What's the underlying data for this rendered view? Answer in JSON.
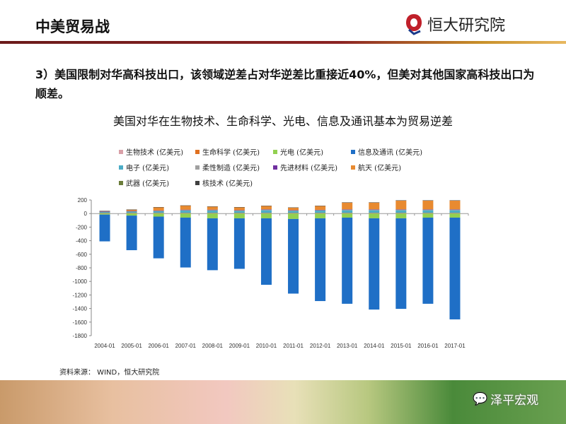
{
  "header": {
    "title": "中美贸易战",
    "logo_text": "恒大研究院"
  },
  "body_text": "3）美国限制对华高科技出口，该领域逆差占对华逆差比重接近40%，但美对其他国家高科技出口为顺差。",
  "source": "资料来源： WIND，恒大研究院",
  "watermark": "泽平宏观",
  "chart_data": {
    "type": "bar",
    "stacked": true,
    "title": "美国对华在生物技术、生命科学、光电、信息及通讯基本为贸易逆差",
    "categories": [
      "2004-01",
      "2005-01",
      "2006-01",
      "2007-01",
      "2008-01",
      "2009-01",
      "2010-01",
      "2011-01",
      "2012-01",
      "2013-01",
      "2014-01",
      "2015-01",
      "2016-01",
      "2017-01"
    ],
    "ylim": [
      -1800,
      200
    ],
    "yticks": [
      200,
      0,
      -200,
      -400,
      -600,
      -800,
      -1000,
      -1200,
      -1400,
      -1600,
      -1800
    ],
    "legend_position": "top",
    "series": [
      {
        "name": "生物技术 (亿美元)",
        "color": "#d9a0a8",
        "values": [
          3,
          3,
          3,
          3,
          3,
          3,
          3,
          3,
          3,
          3,
          3,
          3,
          3,
          3
        ]
      },
      {
        "name": "生命科学 (亿美元)",
        "color": "#e07020",
        "values": [
          5,
          5,
          5,
          5,
          5,
          5,
          5,
          5,
          5,
          5,
          5,
          5,
          5,
          5
        ]
      },
      {
        "name": "光电 (亿美元)",
        "color": "#92d050",
        "values": [
          -15,
          -30,
          -45,
          -60,
          -70,
          -70,
          -70,
          -80,
          -70,
          -60,
          -70,
          -70,
          -60,
          -60
        ]
      },
      {
        "name": "信息及通讯 (亿美元)",
        "color": "#1f6fc6",
        "values": [
          -395,
          -510,
          -615,
          -735,
          -765,
          -745,
          -980,
          -1100,
          -1220,
          -1270,
          -1345,
          -1335,
          -1270,
          -1500
        ]
      },
      {
        "name": "电子 (亿美元)",
        "color": "#4bacc6",
        "values": [
          15,
          20,
          25,
          35,
          35,
          30,
          40,
          30,
          35,
          40,
          40,
          40,
          40,
          40
        ]
      },
      {
        "name": "柔性制造 (亿美元)",
        "color": "#a0a0a0",
        "values": [
          8,
          8,
          10,
          12,
          12,
          10,
          12,
          10,
          10,
          12,
          12,
          12,
          12,
          12
        ]
      },
      {
        "name": "先进材料 (亿美元)",
        "color": "#7030a0",
        "values": [
          2,
          2,
          2,
          2,
          2,
          2,
          2,
          2,
          2,
          2,
          2,
          2,
          2,
          2
        ]
      },
      {
        "name": "航天 (亿美元)",
        "color": "#e88a30",
        "values": [
          5,
          20,
          48,
          61,
          46,
          43,
          51,
          38,
          58,
          101,
          101,
          131,
          131,
          131
        ]
      },
      {
        "name": "武器 (亿美元)",
        "color": "#6b7d3a",
        "values": [
          0,
          0,
          0,
          0,
          0,
          0,
          0,
          0,
          0,
          0,
          0,
          0,
          0,
          0
        ]
      },
      {
        "name": "核技术 (亿美元)",
        "color": "#404040",
        "values": [
          2,
          2,
          2,
          2,
          2,
          2,
          2,
          2,
          2,
          2,
          2,
          2,
          2,
          2
        ]
      }
    ]
  }
}
